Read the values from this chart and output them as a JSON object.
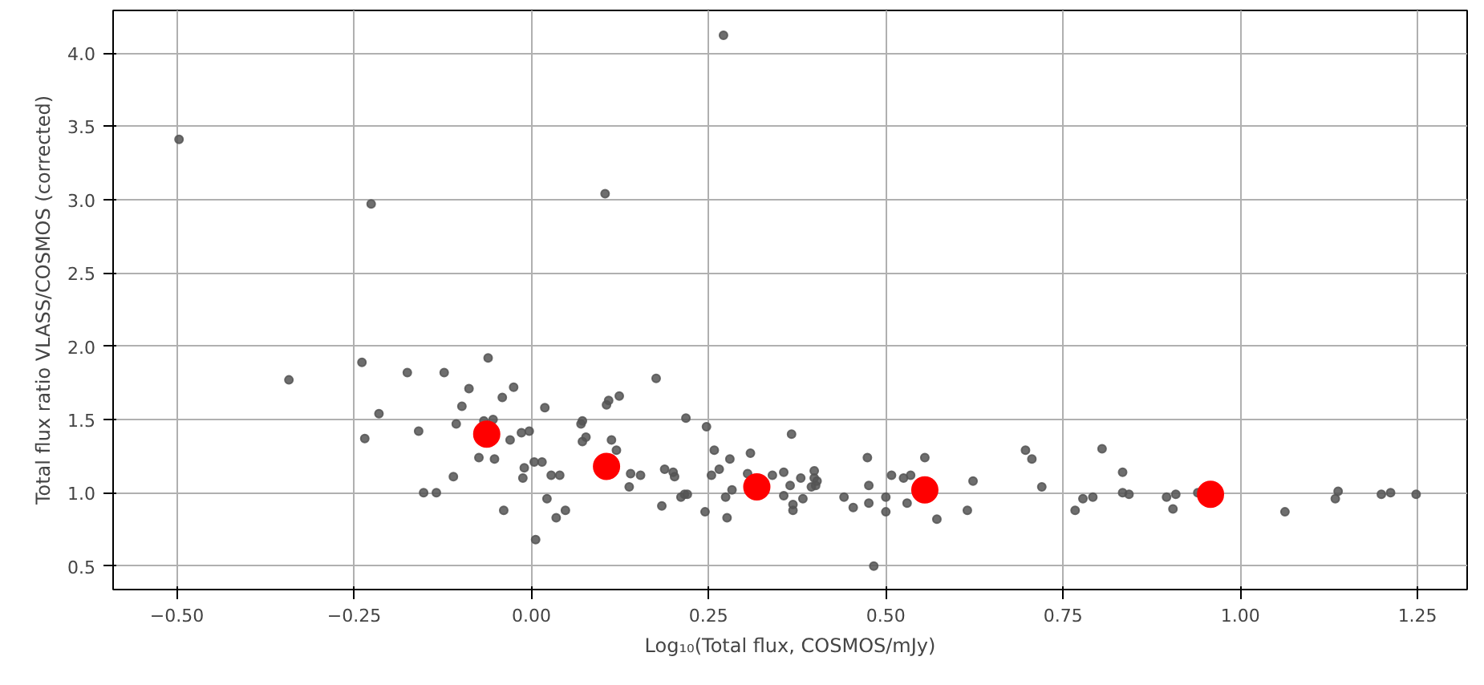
{
  "chart_data": {
    "type": "scatter",
    "xlabel": "Log₁₀(Total flux, COSMOS/mJy)",
    "ylabel": "Total flux ratio VLASS/COSMOS (corrected)",
    "xlim": [
      -0.59,
      1.32
    ],
    "ylim": [
      0.34,
      4.29
    ],
    "xticks": [
      {
        "value": -0.5,
        "label": "−0.50"
      },
      {
        "value": -0.25,
        "label": "−0.25"
      },
      {
        "value": 0,
        "label": "0.00"
      },
      {
        "value": 0.25,
        "label": "0.25"
      },
      {
        "value": 0.5,
        "label": "0.50"
      },
      {
        "value": 0.75,
        "label": "0.75"
      },
      {
        "value": 1,
        "label": "1.00"
      },
      {
        "value": 1.25,
        "label": "1.25"
      }
    ],
    "yticks": [
      {
        "value": 0.5,
        "label": "0.5"
      },
      {
        "value": 1,
        "label": "1.0"
      },
      {
        "value": 1.5,
        "label": "1.5"
      },
      {
        "value": 2,
        "label": "2.0"
      },
      {
        "value": 2.5,
        "label": "2.5"
      },
      {
        "value": 3,
        "label": "3.0"
      },
      {
        "value": 3.5,
        "label": "3.5"
      },
      {
        "value": 4,
        "label": "4.0"
      }
    ],
    "grid": true,
    "marker": "circle",
    "series": [
      {
        "color": "#555555",
        "x": [
          -0.497,
          -0.342,
          -0.226,
          0.104,
          0.271,
          -0.239,
          -0.235,
          -0.215,
          -0.175,
          -0.159,
          -0.152,
          -0.134,
          -0.123,
          -0.11,
          -0.106,
          -0.098,
          -0.088,
          -0.074,
          -0.067,
          -0.061,
          -0.054,
          -0.052,
          -0.041,
          -0.039,
          -0.03,
          -0.025,
          -0.014,
          -0.012,
          -0.01,
          -0.003,
          0.004,
          0.006,
          0.015,
          0.019,
          0.022,
          0.028,
          0.035,
          0.04,
          0.048,
          0.07,
          0.072,
          0.072,
          0.077,
          0.106,
          0.113,
          0.12,
          0.109,
          0.124,
          0.14,
          0.138,
          0.154,
          0.176,
          0.188,
          0.2,
          0.202,
          0.184,
          0.211,
          0.216,
          0.218,
          0.22,
          0.247,
          0.245,
          0.254,
          0.258,
          0.265,
          0.274,
          0.283,
          0.28,
          0.276,
          0.309,
          0.305,
          0.34,
          0.356,
          0.369,
          0.356,
          0.365,
          0.367,
          0.38,
          0.369,
          0.383,
          0.399,
          0.401,
          0.399,
          0.395,
          0.403,
          0.441,
          0.454,
          0.474,
          0.476,
          0.483,
          0.476,
          0.5,
          0.5,
          0.508,
          0.525,
          0.53,
          0.535,
          0.555,
          0.572,
          0.615,
          0.623,
          0.697,
          0.706,
          0.72,
          0.767,
          0.778,
          0.792,
          0.805,
          0.834,
          0.834,
          0.843,
          0.896,
          0.905,
          0.909,
          0.94,
          1.063,
          1.134,
          1.138,
          1.199,
          1.212,
          1.248
        ],
        "values": [
          3.41,
          1.77,
          2.97,
          3.04,
          4.12,
          1.89,
          1.37,
          1.54,
          1.82,
          1.42,
          1.0,
          1.0,
          1.82,
          1.11,
          1.47,
          1.59,
          1.71,
          1.24,
          1.49,
          1.92,
          1.5,
          1.23,
          1.65,
          0.88,
          1.36,
          1.72,
          1.41,
          1.1,
          1.17,
          1.42,
          1.21,
          0.68,
          1.21,
          1.58,
          0.96,
          1.12,
          0.83,
          1.12,
          0.88,
          1.47,
          1.49,
          1.35,
          1.38,
          1.6,
          1.36,
          1.29,
          1.63,
          1.66,
          1.13,
          1.04,
          1.12,
          1.78,
          1.16,
          1.14,
          1.11,
          0.91,
          0.97,
          0.99,
          1.51,
          0.99,
          1.45,
          0.87,
          1.12,
          1.29,
          1.16,
          0.97,
          1.02,
          1.23,
          0.83,
          1.27,
          1.13,
          1.12,
          0.98,
          0.88,
          1.14,
          1.05,
          1.4,
          1.1,
          0.92,
          0.96,
          1.1,
          1.05,
          1.15,
          1.04,
          1.08,
          0.97,
          0.9,
          1.24,
          1.05,
          0.5,
          0.93,
          0.97,
          0.87,
          1.12,
          1.1,
          0.93,
          1.12,
          1.24,
          0.82,
          0.88,
          1.08,
          1.29,
          1.23,
          1.04,
          0.88,
          0.96,
          0.97,
          1.3,
          1.14,
          1.0,
          0.99,
          0.97,
          0.89,
          0.99,
          1.0,
          0.87,
          0.96,
          1.01,
          0.99,
          1.0,
          0.99
        ]
      },
      {
        "color": "#ff0000",
        "x": [
          -0.063,
          0.106,
          0.318,
          0.555,
          0.958
        ],
        "values": [
          1.4,
          1.18,
          1.04,
          1.02,
          0.99
        ]
      }
    ]
  }
}
